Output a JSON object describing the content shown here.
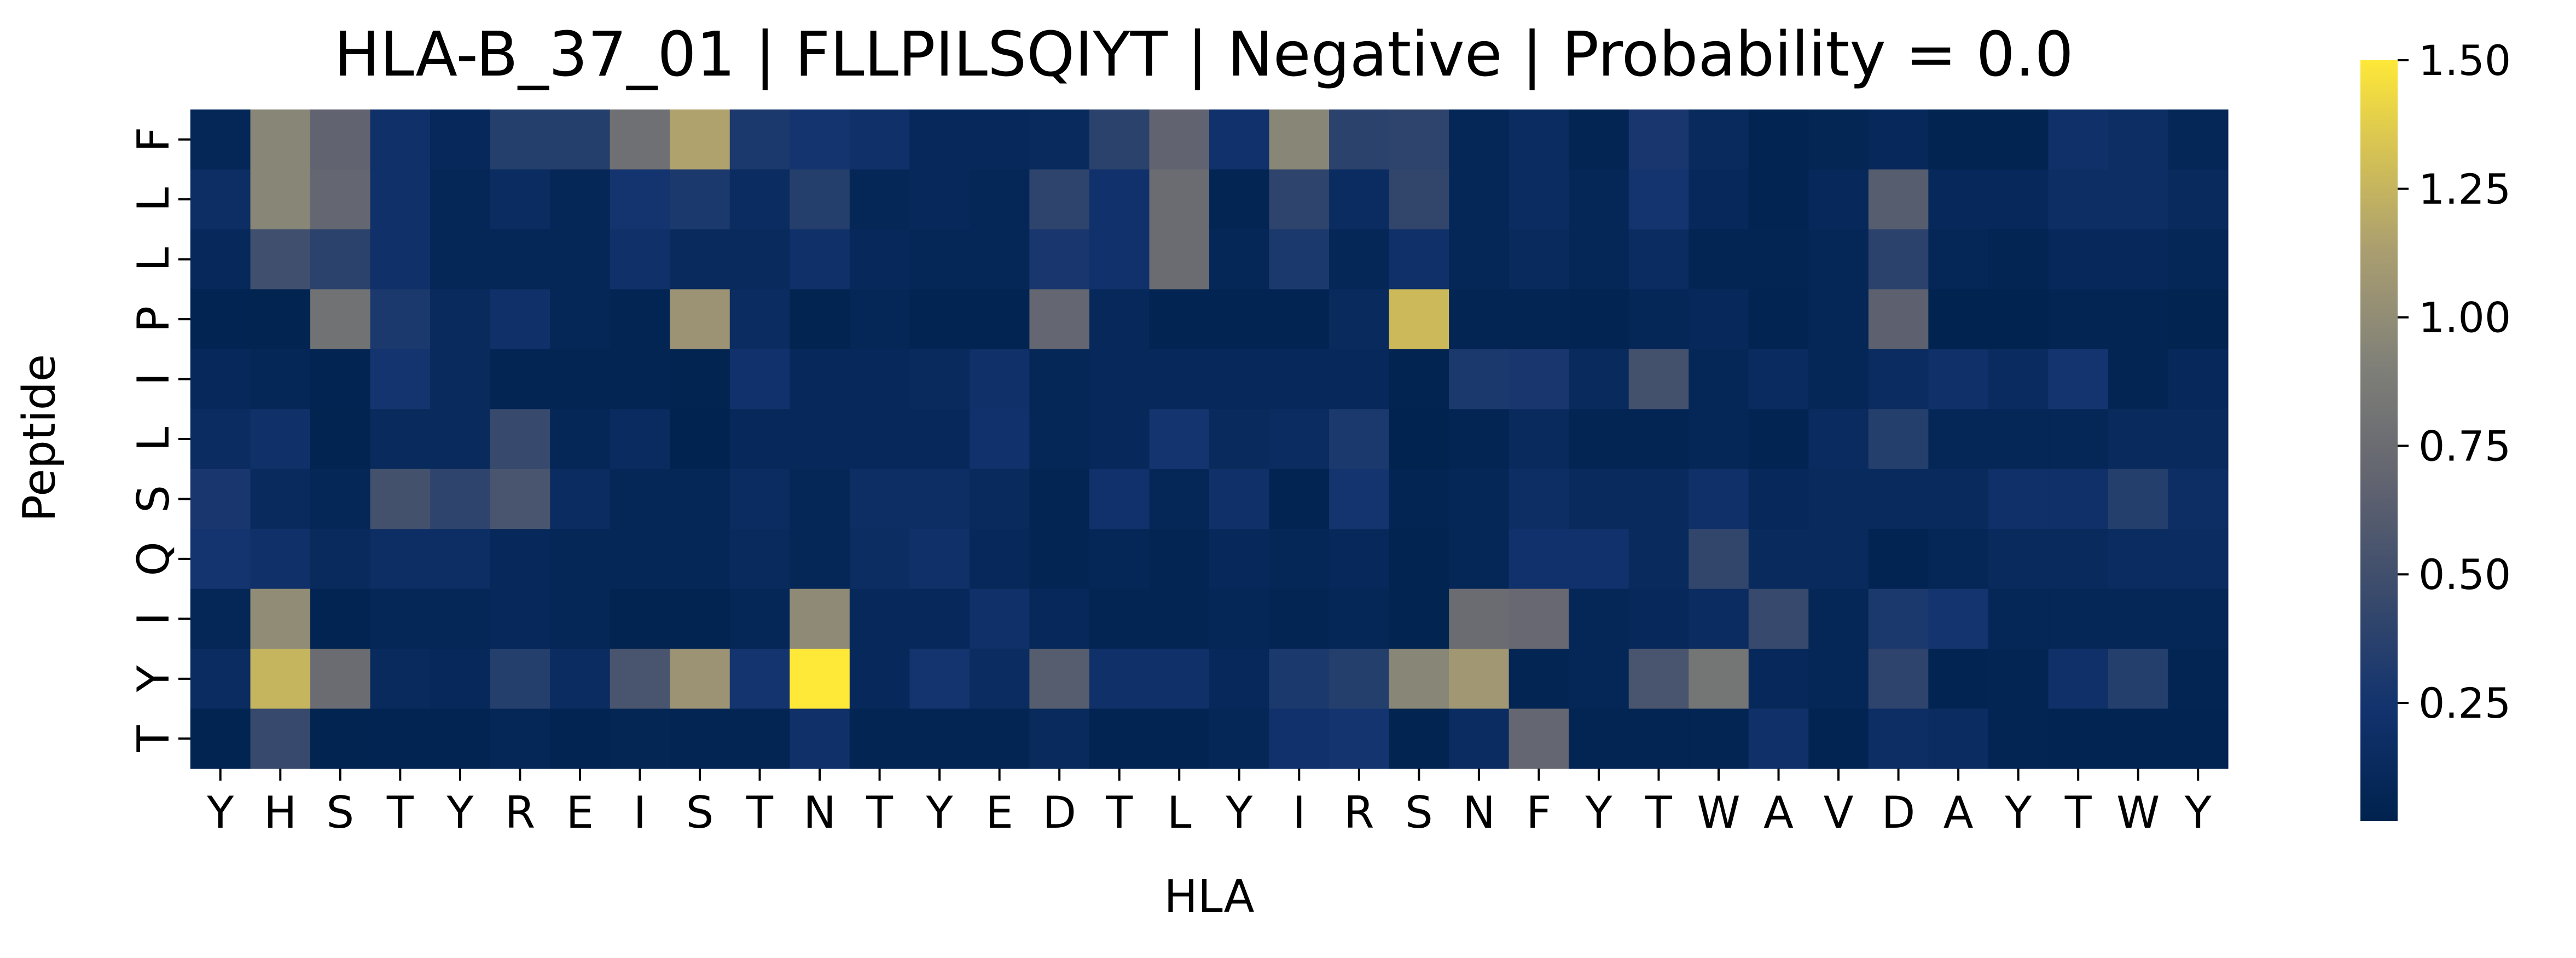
{
  "chart_data": {
    "type": "heatmap",
    "title": "HLA-B_37_01 | FLLPILSQIYT | Negative | Probability = 0.0",
    "xlabel": "HLA",
    "ylabel": "Peptide",
    "x_categories": [
      "Y",
      "H",
      "S",
      "T",
      "Y",
      "R",
      "E",
      "I",
      "S",
      "T",
      "N",
      "T",
      "Y",
      "E",
      "D",
      "T",
      "L",
      "Y",
      "I",
      "R",
      "S",
      "N",
      "F",
      "Y",
      "T",
      "W",
      "A",
      "V",
      "D",
      "A",
      "Y",
      "T",
      "W",
      "Y"
    ],
    "y_categories": [
      "F",
      "L",
      "L",
      "P",
      "I",
      "L",
      "S",
      "Q",
      "I",
      "Y",
      "T"
    ],
    "colormap": "cividis",
    "color_range": [
      0.02,
      1.5
    ],
    "colorbar_ticks": [
      "0.25",
      "0.50",
      "0.75",
      "1.00",
      "1.25",
      "1.50"
    ],
    "values": [
      [
        0.08,
        0.95,
        0.68,
        0.2,
        0.1,
        0.35,
        0.35,
        0.78,
        1.15,
        0.3,
        0.25,
        0.2,
        0.1,
        0.1,
        0.12,
        0.38,
        0.68,
        0.22,
        0.95,
        0.38,
        0.4,
        0.08,
        0.15,
        0.06,
        0.28,
        0.12,
        0.05,
        0.07,
        0.1,
        0.04,
        0.04,
        0.2,
        0.18,
        0.08
      ],
      [
        0.18,
        0.95,
        0.7,
        0.2,
        0.08,
        0.15,
        0.08,
        0.25,
        0.3,
        0.15,
        0.35,
        0.08,
        0.1,
        0.08,
        0.4,
        0.22,
        0.75,
        0.06,
        0.4,
        0.15,
        0.42,
        0.08,
        0.15,
        0.08,
        0.25,
        0.1,
        0.05,
        0.1,
        0.62,
        0.1,
        0.1,
        0.18,
        0.18,
        0.12
      ],
      [
        0.1,
        0.5,
        0.38,
        0.2,
        0.08,
        0.08,
        0.08,
        0.2,
        0.12,
        0.12,
        0.2,
        0.1,
        0.08,
        0.08,
        0.28,
        0.22,
        0.75,
        0.08,
        0.3,
        0.08,
        0.2,
        0.08,
        0.12,
        0.08,
        0.15,
        0.06,
        0.06,
        0.08,
        0.38,
        0.08,
        0.06,
        0.1,
        0.1,
        0.08
      ],
      [
        0.05,
        0.04,
        0.8,
        0.3,
        0.12,
        0.2,
        0.08,
        0.06,
        1.05,
        0.15,
        0.04,
        0.08,
        0.05,
        0.05,
        0.7,
        0.1,
        0.05,
        0.05,
        0.05,
        0.12,
        1.28,
        0.06,
        0.06,
        0.05,
        0.08,
        0.1,
        0.05,
        0.08,
        0.65,
        0.03,
        0.03,
        0.06,
        0.06,
        0.04
      ],
      [
        0.1,
        0.08,
        0.05,
        0.25,
        0.12,
        0.06,
        0.06,
        0.06,
        0.04,
        0.22,
        0.1,
        0.1,
        0.12,
        0.2,
        0.08,
        0.1,
        0.1,
        0.1,
        0.1,
        0.1,
        0.04,
        0.3,
        0.28,
        0.12,
        0.52,
        0.08,
        0.14,
        0.08,
        0.15,
        0.2,
        0.14,
        0.25,
        0.06,
        0.1
      ],
      [
        0.15,
        0.2,
        0.04,
        0.12,
        0.12,
        0.45,
        0.08,
        0.14,
        0.03,
        0.1,
        0.1,
        0.1,
        0.1,
        0.22,
        0.08,
        0.1,
        0.25,
        0.12,
        0.15,
        0.3,
        0.03,
        0.06,
        0.12,
        0.06,
        0.06,
        0.08,
        0.05,
        0.14,
        0.35,
        0.08,
        0.08,
        0.08,
        0.12,
        0.12
      ],
      [
        0.28,
        0.12,
        0.08,
        0.52,
        0.4,
        0.55,
        0.15,
        0.08,
        0.08,
        0.15,
        0.08,
        0.18,
        0.18,
        0.12,
        0.06,
        0.22,
        0.08,
        0.2,
        0.05,
        0.25,
        0.06,
        0.08,
        0.18,
        0.12,
        0.12,
        0.2,
        0.1,
        0.12,
        0.12,
        0.12,
        0.2,
        0.2,
        0.35,
        0.18
      ],
      [
        0.25,
        0.2,
        0.12,
        0.18,
        0.18,
        0.1,
        0.08,
        0.08,
        0.08,
        0.12,
        0.08,
        0.16,
        0.2,
        0.1,
        0.06,
        0.08,
        0.06,
        0.1,
        0.08,
        0.1,
        0.04,
        0.08,
        0.22,
        0.22,
        0.12,
        0.42,
        0.12,
        0.12,
        0.05,
        0.08,
        0.12,
        0.12,
        0.15,
        0.15
      ],
      [
        0.08,
        1.0,
        0.05,
        0.08,
        0.08,
        0.1,
        0.08,
        0.04,
        0.04,
        0.08,
        0.98,
        0.1,
        0.1,
        0.2,
        0.1,
        0.06,
        0.06,
        0.08,
        0.06,
        0.08,
        0.04,
        0.75,
        0.72,
        0.08,
        0.1,
        0.15,
        0.45,
        0.08,
        0.3,
        0.25,
        0.08,
        0.08,
        0.08,
        0.08
      ],
      [
        0.15,
        1.25,
        0.75,
        0.12,
        0.1,
        0.35,
        0.15,
        0.55,
        1.05,
        0.25,
        1.5,
        0.1,
        0.25,
        0.15,
        0.62,
        0.2,
        0.2,
        0.1,
        0.3,
        0.35,
        0.95,
        1.08,
        0.06,
        0.08,
        0.55,
        0.82,
        0.1,
        0.08,
        0.4,
        0.05,
        0.06,
        0.2,
        0.35,
        0.06
      ],
      [
        0.04,
        0.45,
        0.04,
        0.05,
        0.05,
        0.08,
        0.05,
        0.07,
        0.06,
        0.06,
        0.2,
        0.06,
        0.06,
        0.06,
        0.12,
        0.05,
        0.05,
        0.08,
        0.22,
        0.25,
        0.04,
        0.15,
        0.7,
        0.06,
        0.06,
        0.06,
        0.2,
        0.05,
        0.18,
        0.15,
        0.06,
        0.05,
        0.05,
        0.05
      ]
    ]
  }
}
